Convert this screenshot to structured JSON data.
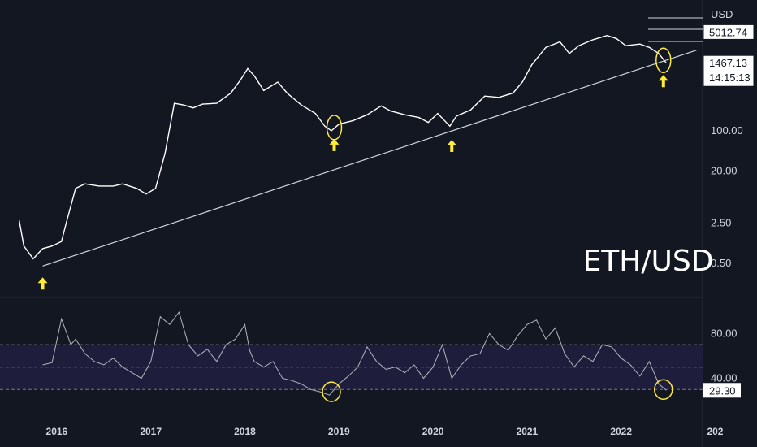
{
  "chart_data": [
    {
      "type": "line",
      "title": "ETH/USD",
      "yscale": "log",
      "currency": "USD",
      "x_ticks": [
        "2016",
        "2017",
        "2018",
        "2019",
        "2020",
        "2021",
        "2022",
        "202"
      ],
      "y_ticks": [
        {
          "label": "100.00",
          "value": 100
        },
        {
          "label": "20.00",
          "value": 20
        },
        {
          "label": "2.50",
          "value": 2.5
        },
        {
          "label": "0.50",
          "value": 0.5
        }
      ],
      "price_tags": [
        {
          "label": "5012.74",
          "value": 5012.74
        },
        {
          "label": "1467.13",
          "value": 1467.13,
          "sublabel": "14:15:13"
        }
      ],
      "series": [
        {
          "x": [
            2015.6,
            2015.65,
            2015.75,
            2015.85,
            2015.95,
            2016.05,
            2016.1,
            2016.2,
            2016.3,
            2016.45,
            2016.6,
            2016.7,
            2016.85,
            2016.95,
            2017.05,
            2017.15,
            2017.25,
            2017.35,
            2017.45,
            2017.55,
            2017.7,
            2017.85,
            2017.95,
            2018.03,
            2018.1,
            2018.2,
            2018.35,
            2018.45,
            2018.6,
            2018.75,
            2018.85,
            2018.92,
            2019.0,
            2019.15,
            2019.3,
            2019.45,
            2019.55,
            2019.7,
            2019.85,
            2019.95,
            2020.05,
            2020.18,
            2020.25,
            2020.4,
            2020.55,
            2020.7,
            2020.85,
            2020.95,
            2021.05,
            2021.2,
            2021.35,
            2021.45,
            2021.55,
            2021.7,
            2021.85,
            2021.95,
            2022.05,
            2022.2,
            2022.3,
            2022.4,
            2022.48
          ],
          "values": [
            2.8,
            1.0,
            0.6,
            0.9,
            1.0,
            1.2,
            2.5,
            10,
            12,
            11,
            11,
            12,
            10,
            8,
            10,
            40,
            300,
            280,
            250,
            290,
            300,
            450,
            750,
            1200,
            900,
            500,
            700,
            450,
            280,
            200,
            120,
            100,
            130,
            150,
            190,
            270,
            220,
            190,
            170,
            140,
            200,
            120,
            180,
            230,
            400,
            380,
            450,
            700,
            1400,
            2800,
            3500,
            2200,
            3000,
            3800,
            4500,
            4000,
            3000,
            3200,
            2800,
            2200,
            1500
          ]
        }
      ],
      "trendline": {
        "x": [
          2015.85,
          2022.8
        ],
        "values": [
          0.45,
          2500
        ]
      },
      "support_touches": [
        {
          "x": 2015.85,
          "value": 0.45
        },
        {
          "x": 2018.95,
          "value": 100
        },
        {
          "x": 2020.2,
          "value": 110
        },
        {
          "x": 2022.45,
          "value": 1467.13
        }
      ]
    },
    {
      "type": "line",
      "indicator": "RSI",
      "y_ticks": [
        {
          "label": "80.00",
          "value": 80
        },
        {
          "label": "40.00",
          "value": 40
        }
      ],
      "levels": [
        70,
        30
      ],
      "current": {
        "label": "29.30",
        "value": 29.3
      },
      "series": [
        {
          "x": [
            2015.85,
            2015.95,
            2016.05,
            2016.15,
            2016.2,
            2016.3,
            2016.4,
            2016.5,
            2016.6,
            2016.7,
            2016.8,
            2016.9,
            2017.0,
            2017.1,
            2017.2,
            2017.3,
            2017.4,
            2017.5,
            2017.6,
            2017.7,
            2017.8,
            2017.9,
            2018.0,
            2018.05,
            2018.1,
            2018.2,
            2018.3,
            2018.4,
            2018.5,
            2018.6,
            2018.7,
            2018.8,
            2018.9,
            2019.0,
            2019.1,
            2019.2,
            2019.3,
            2019.4,
            2019.5,
            2019.6,
            2019.7,
            2019.8,
            2019.9,
            2020.0,
            2020.1,
            2020.2,
            2020.3,
            2020.4,
            2020.5,
            2020.6,
            2020.7,
            2020.8,
            2020.9,
            2021.0,
            2021.1,
            2021.2,
            2021.3,
            2021.4,
            2021.5,
            2021.6,
            2021.7,
            2021.8,
            2021.9,
            2022.0,
            2022.1,
            2022.2,
            2022.3,
            2022.4,
            2022.48
          ],
          "values": [
            52,
            54,
            93,
            70,
            75,
            62,
            55,
            52,
            58,
            50,
            45,
            40,
            55,
            95,
            88,
            99,
            70,
            60,
            66,
            55,
            70,
            75,
            88,
            65,
            55,
            50,
            55,
            40,
            38,
            35,
            30,
            28,
            25,
            35,
            42,
            50,
            68,
            55,
            48,
            50,
            45,
            52,
            40,
            50,
            70,
            40,
            52,
            60,
            62,
            80,
            70,
            65,
            78,
            88,
            92,
            75,
            85,
            62,
            50,
            60,
            55,
            70,
            68,
            58,
            52,
            42,
            55,
            35,
            29.3
          ]
        }
      ],
      "highlights": [
        {
          "x": 2018.92,
          "value": 28
        },
        {
          "x": 2022.45,
          "value": 30
        }
      ]
    }
  ],
  "axis": {
    "currency_label": "USD"
  },
  "colors": {
    "background": "#131722",
    "line": "#ffffff",
    "rsi_line": "#b2b5be",
    "accent": "#ffeb3b",
    "rsi_band": "#1e1e3c"
  }
}
